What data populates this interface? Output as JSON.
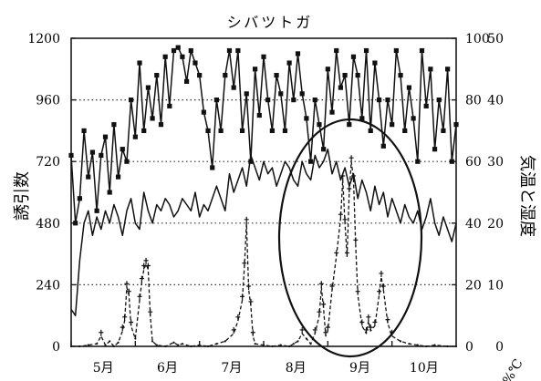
{
  "chart_data": {
    "type": "line",
    "title": "シバツトガ",
    "xlabel": "",
    "ylabel": "誘引数",
    "y2label": "気温と湿度",
    "units_mark": "%℃",
    "ylim": [
      0,
      1200
    ],
    "y2lim_humidity": [
      0,
      100
    ],
    "y2lim_temperature": [
      0,
      50
    ],
    "yticks": [
      0,
      240,
      480,
      720,
      960,
      1200
    ],
    "yticks_right_humidity": [
      0,
      20,
      40,
      60,
      80,
      100
    ],
    "yticks_right_temperature": [
      0,
      10,
      20,
      30,
      40,
      50
    ],
    "month_labels": [
      "5月",
      "6月",
      "7月",
      "8月",
      "9月",
      "10月"
    ],
    "grid": "dotted-horizontal",
    "x_domain_days": [
      0,
      180
    ],
    "series": [
      {
        "name": "",
        "axis": "right-humidity",
        "marker": "square",
        "values": [
          [
            0,
            62
          ],
          [
            2,
            40
          ],
          [
            4,
            48
          ],
          [
            6,
            70
          ],
          [
            8,
            55
          ],
          [
            10,
            63
          ],
          [
            12,
            44
          ],
          [
            14,
            62
          ],
          [
            16,
            68
          ],
          [
            18,
            50
          ],
          [
            20,
            72
          ],
          [
            22,
            55
          ],
          [
            24,
            64
          ],
          [
            26,
            60
          ],
          [
            28,
            80
          ],
          [
            30,
            68
          ],
          [
            32,
            92
          ],
          [
            34,
            70
          ],
          [
            36,
            84
          ],
          [
            38,
            74
          ],
          [
            40,
            88
          ],
          [
            42,
            72
          ],
          [
            44,
            94
          ],
          [
            46,
            78
          ],
          [
            48,
            96
          ],
          [
            50,
            97
          ],
          [
            52,
            94
          ],
          [
            54,
            86
          ],
          [
            56,
            96
          ],
          [
            58,
            92
          ],
          [
            60,
            88
          ],
          [
            62,
            76
          ],
          [
            64,
            70
          ],
          [
            66,
            58
          ],
          [
            68,
            80
          ],
          [
            70,
            70
          ],
          [
            72,
            88
          ],
          [
            74,
            96
          ],
          [
            76,
            84
          ],
          [
            78,
            96
          ],
          [
            80,
            70
          ],
          [
            82,
            82
          ],
          [
            84,
            60
          ],
          [
            86,
            90
          ],
          [
            88,
            75
          ],
          [
            90,
            94
          ],
          [
            92,
            80
          ],
          [
            94,
            70
          ],
          [
            96,
            88
          ],
          [
            98,
            82
          ],
          [
            100,
            70
          ],
          [
            102,
            92
          ],
          [
            104,
            80
          ],
          [
            106,
            95
          ],
          [
            108,
            82
          ],
          [
            110,
            74
          ],
          [
            112,
            60
          ],
          [
            114,
            80
          ],
          [
            116,
            72
          ],
          [
            118,
            64
          ],
          [
            120,
            90
          ],
          [
            122,
            76
          ],
          [
            124,
            96
          ],
          [
            126,
            84
          ],
          [
            128,
            88
          ],
          [
            130,
            72
          ],
          [
            132,
            94
          ],
          [
            134,
            88
          ],
          [
            136,
            74
          ],
          [
            138,
            96
          ],
          [
            140,
            70
          ],
          [
            142,
            92
          ],
          [
            144,
            80
          ],
          [
            146,
            65
          ],
          [
            148,
            80
          ],
          [
            150,
            72
          ],
          [
            152,
            96
          ],
          [
            154,
            88
          ],
          [
            156,
            70
          ],
          [
            158,
            84
          ],
          [
            160,
            74
          ],
          [
            162,
            60
          ],
          [
            164,
            96
          ],
          [
            166,
            78
          ],
          [
            168,
            90
          ],
          [
            170,
            64
          ],
          [
            172,
            80
          ],
          [
            174,
            70
          ],
          [
            176,
            90
          ],
          [
            178,
            60
          ],
          [
            180,
            72
          ]
        ]
      },
      {
        "name": "",
        "axis": "right-temperature",
        "marker": "none",
        "values": [
          [
            0,
            6
          ],
          [
            2,
            5
          ],
          [
            4,
            14
          ],
          [
            6,
            20
          ],
          [
            8,
            22
          ],
          [
            10,
            18
          ],
          [
            12,
            21
          ],
          [
            14,
            19
          ],
          [
            16,
            22
          ],
          [
            18,
            20
          ],
          [
            20,
            23
          ],
          [
            22,
            21
          ],
          [
            24,
            18
          ],
          [
            26,
            22
          ],
          [
            28,
            24
          ],
          [
            30,
            20
          ],
          [
            32,
            19
          ],
          [
            34,
            25
          ],
          [
            36,
            22
          ],
          [
            38,
            20
          ],
          [
            40,
            23
          ],
          [
            42,
            22
          ],
          [
            44,
            24
          ],
          [
            46,
            23
          ],
          [
            48,
            21
          ],
          [
            50,
            22
          ],
          [
            52,
            24
          ],
          [
            54,
            23
          ],
          [
            56,
            22
          ],
          [
            58,
            25
          ],
          [
            60,
            21
          ],
          [
            62,
            23
          ],
          [
            64,
            22
          ],
          [
            66,
            24
          ],
          [
            68,
            26
          ],
          [
            70,
            24
          ],
          [
            72,
            22
          ],
          [
            74,
            28
          ],
          [
            76,
            25
          ],
          [
            78,
            27
          ],
          [
            80,
            29
          ],
          [
            82,
            26
          ],
          [
            84,
            31
          ],
          [
            86,
            29
          ],
          [
            88,
            27
          ],
          [
            90,
            30
          ],
          [
            92,
            28
          ],
          [
            94,
            29
          ],
          [
            96,
            26
          ],
          [
            98,
            28
          ],
          [
            100,
            30
          ],
          [
            102,
            29
          ],
          [
            104,
            27
          ],
          [
            106,
            26
          ],
          [
            108,
            30
          ],
          [
            110,
            28
          ],
          [
            112,
            27
          ],
          [
            114,
            31
          ],
          [
            116,
            29
          ],
          [
            118,
            30
          ],
          [
            120,
            32
          ],
          [
            122,
            28
          ],
          [
            124,
            30
          ],
          [
            126,
            27
          ],
          [
            128,
            29
          ],
          [
            130,
            26
          ],
          [
            132,
            28
          ],
          [
            134,
            24
          ],
          [
            136,
            27
          ],
          [
            138,
            25
          ],
          [
            140,
            22
          ],
          [
            142,
            26
          ],
          [
            144,
            23
          ],
          [
            146,
            25
          ],
          [
            148,
            21
          ],
          [
            150,
            24
          ],
          [
            152,
            22
          ],
          [
            154,
            20
          ],
          [
            156,
            23
          ],
          [
            158,
            21
          ],
          [
            160,
            20
          ],
          [
            162,
            22
          ],
          [
            164,
            19
          ],
          [
            166,
            21
          ],
          [
            168,
            24
          ],
          [
            170,
            20
          ],
          [
            172,
            18
          ],
          [
            174,
            21
          ],
          [
            176,
            19
          ],
          [
            178,
            17
          ],
          [
            180,
            20
          ]
        ]
      },
      {
        "name": "",
        "axis": "left",
        "marker": "pin",
        "values": [
          [
            0,
            0
          ],
          [
            4,
            0
          ],
          [
            8,
            5
          ],
          [
            12,
            10
          ],
          [
            14,
            40
          ],
          [
            16,
            5
          ],
          [
            18,
            20
          ],
          [
            20,
            0
          ],
          [
            22,
            15
          ],
          [
            24,
            60
          ],
          [
            25,
            100
          ],
          [
            26,
            230
          ],
          [
            27,
            200
          ],
          [
            28,
            80
          ],
          [
            30,
            30
          ],
          [
            32,
            180
          ],
          [
            33,
            250
          ],
          [
            34,
            300
          ],
          [
            35,
            320
          ],
          [
            36,
            300
          ],
          [
            37,
            120
          ],
          [
            38,
            20
          ],
          [
            40,
            5
          ],
          [
            44,
            0
          ],
          [
            48,
            15
          ],
          [
            50,
            5
          ],
          [
            52,
            10
          ],
          [
            56,
            0
          ],
          [
            60,
            5
          ],
          [
            64,
            0
          ],
          [
            68,
            10
          ],
          [
            72,
            20
          ],
          [
            76,
            50
          ],
          [
            78,
            100
          ],
          [
            80,
            180
          ],
          [
            81,
            310
          ],
          [
            82,
            480
          ],
          [
            83,
            220
          ],
          [
            84,
            160
          ],
          [
            85,
            40
          ],
          [
            86,
            10
          ],
          [
            90,
            5
          ],
          [
            94,
            0
          ],
          [
            98,
            5
          ],
          [
            102,
            0
          ],
          [
            104,
            10
          ],
          [
            106,
            20
          ],
          [
            108,
            50
          ],
          [
            110,
            30
          ],
          [
            112,
            10
          ],
          [
            114,
            50
          ],
          [
            116,
            120
          ],
          [
            117,
            230
          ],
          [
            118,
            150
          ],
          [
            119,
            40
          ],
          [
            120,
            60
          ],
          [
            122,
            220
          ],
          [
            124,
            350
          ],
          [
            126,
            500
          ],
          [
            127,
            650
          ],
          [
            128,
            480
          ],
          [
            129,
            350
          ],
          [
            130,
            600
          ],
          [
            131,
            720
          ],
          [
            132,
            650
          ],
          [
            133,
            400
          ],
          [
            134,
            200
          ],
          [
            136,
            80
          ],
          [
            138,
            50
          ],
          [
            139,
            100
          ],
          [
            140,
            60
          ],
          [
            142,
            80
          ],
          [
            144,
            200
          ],
          [
            145,
            270
          ],
          [
            146,
            220
          ],
          [
            148,
            90
          ],
          [
            150,
            40
          ],
          [
            154,
            20
          ],
          [
            158,
            10
          ],
          [
            162,
            5
          ],
          [
            166,
            0
          ],
          [
            170,
            5
          ],
          [
            176,
            0
          ],
          [
            180,
            0
          ]
        ]
      }
    ]
  }
}
